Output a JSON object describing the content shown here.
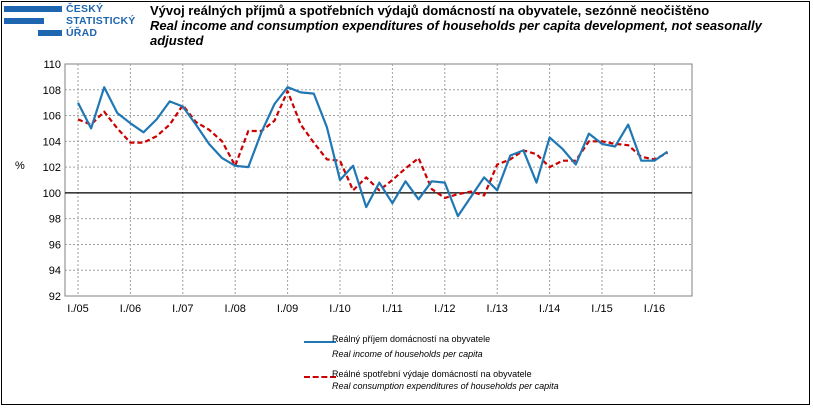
{
  "logo": {
    "lines": [
      "ČESKÝ",
      "STATISTICKÝ",
      "ÚŘAD"
    ],
    "color": "#1f66b0"
  },
  "title_cz": "Vývoj reálných příjmů a spotřebních výdajů domácností na obyvatele, sezónně neočištěno",
  "title_en": "Real income and consumption expenditures of households per capita development, not seasonally adjusted",
  "chart_data": {
    "type": "line",
    "ylabel": "%",
    "ylim": [
      92,
      110
    ],
    "yticks": [
      92,
      94,
      96,
      98,
      100,
      102,
      104,
      106,
      108,
      110
    ],
    "x_tick_labels": [
      "I./05",
      "I./06",
      "I./07",
      "I./08",
      "I./09",
      "I./10",
      "I./11",
      "I./12",
      "I./13",
      "I./14",
      "I./15",
      "I./16"
    ],
    "x_points_per_tick": 4,
    "grid": true,
    "reference_line": 100,
    "legend_placement": "bottom-center",
    "series": [
      {
        "name": "Reálný příjem domácností na obyvatele",
        "name_en": "Real income of households per capita",
        "color": "#1f77b4",
        "style": "solid",
        "values": [
          107.0,
          105.0,
          108.2,
          106.2,
          105.4,
          104.7,
          105.7,
          107.1,
          106.7,
          105.3,
          103.8,
          102.7,
          102.1,
          102.0,
          104.7,
          106.9,
          108.2,
          107.8,
          107.7,
          105.1,
          101.0,
          102.1,
          98.9,
          100.8,
          99.2,
          100.9,
          99.5,
          100.9,
          100.8,
          98.2,
          99.7,
          101.2,
          100.2,
          102.9,
          103.3,
          100.8,
          104.3,
          103.4,
          102.2,
          104.6,
          103.8,
          103.6,
          105.3,
          102.5,
          102.5,
          103.2
        ]
      },
      {
        "name": "Reálné spotřební výdaje domácností na obyvatele",
        "name_en": "Real consumption expenditures of households per capita",
        "color": "#cc0000",
        "style": "dashed",
        "values": [
          105.7,
          105.3,
          106.3,
          105.0,
          103.9,
          103.9,
          104.4,
          105.3,
          106.8,
          105.5,
          104.9,
          104.0,
          102.1,
          104.8,
          104.8,
          105.6,
          107.9,
          105.3,
          103.9,
          102.6,
          102.5,
          100.2,
          101.2,
          100.2,
          101.0,
          101.9,
          102.7,
          100.3,
          99.6,
          99.9,
          100.1,
          99.8,
          102.2,
          102.6,
          103.3,
          103.0,
          102.0,
          102.5,
          102.5,
          104.0,
          104.0,
          103.8,
          103.7,
          102.8,
          102.6,
          103.1
        ]
      }
    ]
  }
}
